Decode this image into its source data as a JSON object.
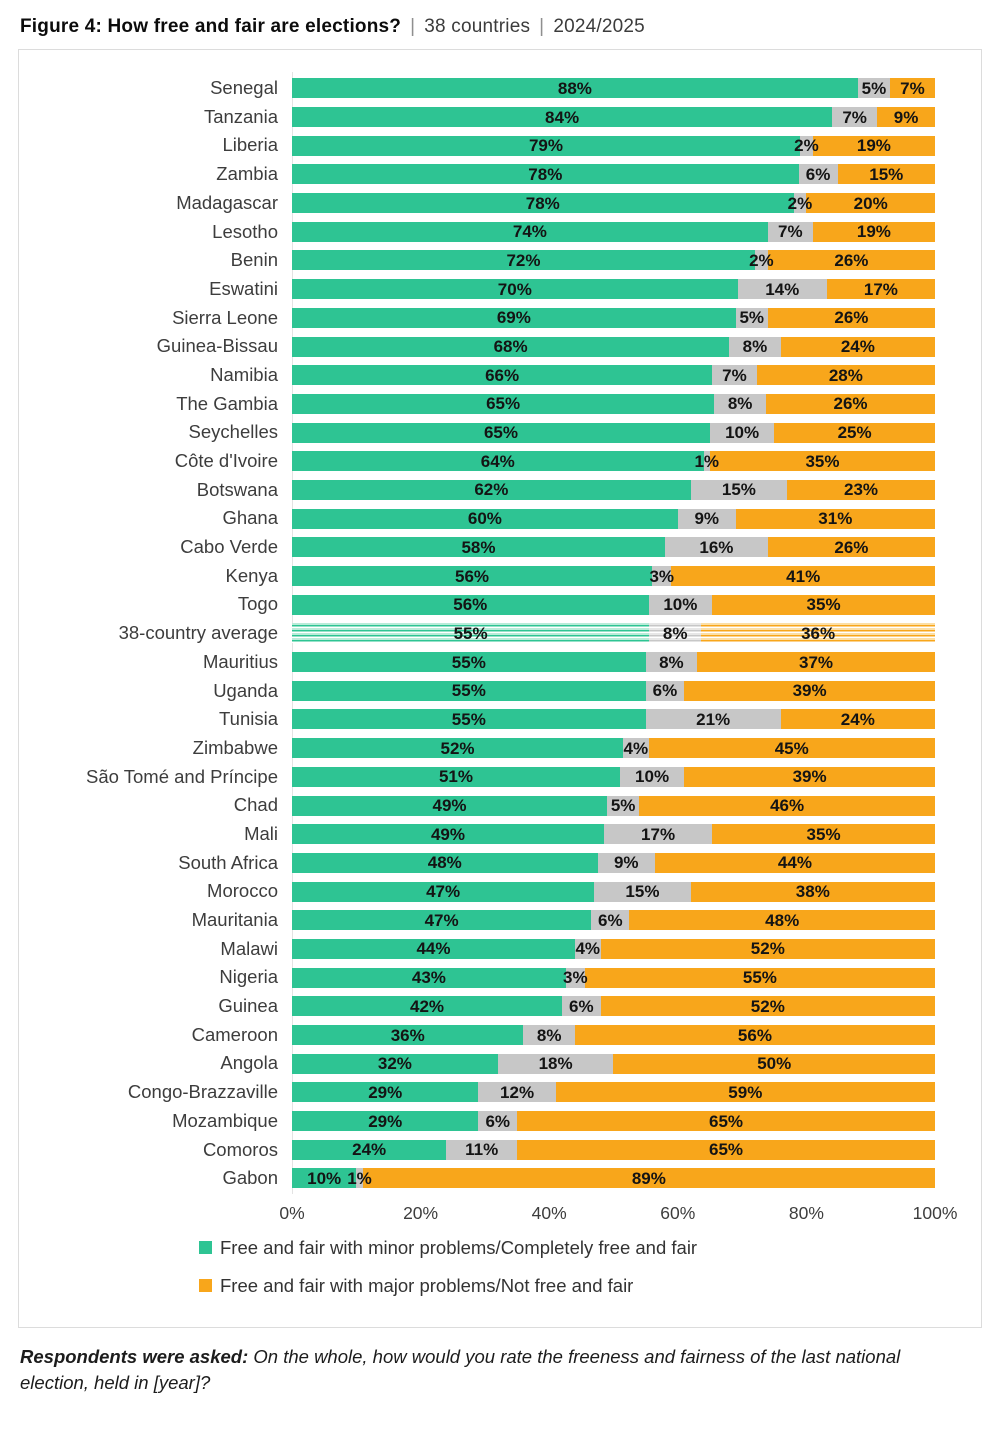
{
  "title": {
    "figure": "Figure 4: How free and fair are elections?",
    "separator": "|",
    "meta": [
      "38 countries",
      "2024/2025"
    ]
  },
  "chart_data": {
    "type": "bar",
    "orientation": "horizontal",
    "stacked": true,
    "xlim": [
      0,
      100
    ],
    "x_ticks": [
      "0%",
      "20%",
      "40%",
      "60%",
      "80%",
      "100%"
    ],
    "value_suffix": "%",
    "average_row": "38-country average",
    "categories": [
      "Senegal",
      "Tanzania",
      "Liberia",
      "Zambia",
      "Madagascar",
      "Lesotho",
      "Benin",
      "Eswatini",
      "Sierra Leone",
      "Guinea-Bissau",
      "Namibia",
      "The Gambia",
      "Seychelles",
      "Côte d'Ivoire",
      "Botswana",
      "Ghana",
      "Cabo Verde",
      "Kenya",
      "Togo",
      "38-country average",
      "Mauritius",
      "Uganda",
      "Tunisia",
      "Zimbabwe",
      "São Tomé and Príncipe",
      "Chad",
      "Mali",
      "South Africa",
      "Morocco",
      "Mauritania",
      "Malawi",
      "Nigeria",
      "Guinea",
      "Cameroon",
      "Angola",
      "Congo-Brazzaville",
      "Mozambique",
      "Comoros",
      "Gabon"
    ],
    "series": [
      {
        "name": "Free and fair with minor problems/Completely free and fair",
        "color": "#2EC493",
        "stripe_tint": "#B9ECD9",
        "values": [
          88,
          84,
          79,
          78,
          78,
          74,
          72,
          70,
          69,
          68,
          66,
          65,
          65,
          64,
          62,
          60,
          58,
          56,
          56,
          55,
          55,
          55,
          55,
          52,
          51,
          49,
          49,
          48,
          47,
          47,
          44,
          43,
          42,
          36,
          32,
          29,
          29,
          24,
          10
        ]
      },
      {
        "name": "unlabeled-middle-segment",
        "color": "#C7C7C7",
        "stripe_tint": "#E7E7E7",
        "values": [
          5,
          7,
          2,
          6,
          2,
          7,
          2,
          14,
          5,
          8,
          7,
          8,
          10,
          1,
          15,
          9,
          16,
          3,
          10,
          8,
          8,
          6,
          21,
          4,
          10,
          5,
          17,
          9,
          15,
          6,
          4,
          3,
          6,
          8,
          18,
          12,
          6,
          11,
          1
        ]
      },
      {
        "name": "Free and fair with major problems/Not free and fair",
        "color": "#F8A61B",
        "stripe_tint": "#FCDFA6",
        "values": [
          7,
          9,
          19,
          15,
          20,
          19,
          26,
          17,
          26,
          24,
          28,
          26,
          25,
          35,
          23,
          31,
          26,
          41,
          35,
          36,
          37,
          39,
          24,
          45,
          39,
          46,
          35,
          44,
          38,
          48,
          52,
          55,
          52,
          56,
          50,
          59,
          65,
          65,
          89
        ]
      }
    ],
    "legend": [
      {
        "label": "Free and fair with minor problems/Completely free and fair",
        "color": "#2EC493"
      },
      {
        "label": "Free and fair with major problems/Not free and fair",
        "color": "#F8A61B"
      }
    ]
  },
  "footer": {
    "lead": "Respondents were asked:",
    "question": "On the whole, how would you rate the freeness and fairness of the last national election, held in [year]?"
  }
}
